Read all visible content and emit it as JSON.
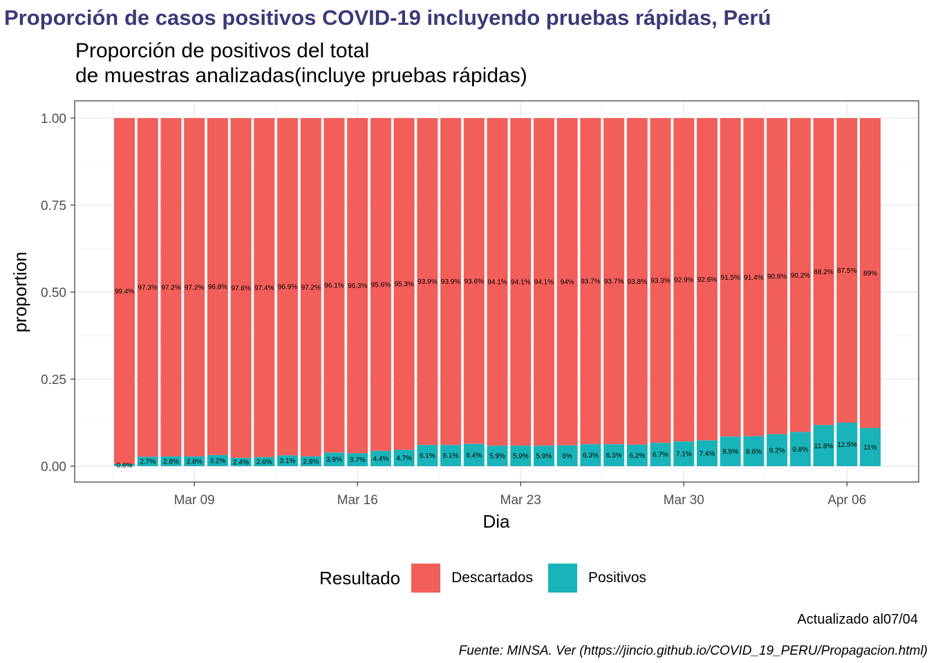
{
  "title": "Proporción de casos positivos COVID-19 incluyendo pruebas rápidas, Perú",
  "subtitle_line1": "Proporción de positivos del total",
  "subtitle_line2": "de muestras analizadas(incluye pruebas rápidas)",
  "legend": {
    "title": "Resultado",
    "items": [
      {
        "label": "Descartados",
        "color": "#F25E5A"
      },
      {
        "label": "Positivos",
        "color": "#19B4B9"
      }
    ]
  },
  "caption_updated": "Actualizado al07/04",
  "caption_source": "Fuente: MINSA. Ver (https://jincio.github.io/COVID_19_PERU/Propagacion.html)",
  "chart_data": {
    "type": "bar",
    "stacked": true,
    "xlabel": "Dia",
    "ylabel": "proportion",
    "ylim": [
      0,
      1
    ],
    "yticks": [
      "0.00",
      "0.25",
      "0.50",
      "0.75",
      "1.00"
    ],
    "xticks": [
      "Mar 09",
      "Mar 16",
      "Mar 23",
      "Mar 30",
      "Apr 06"
    ],
    "grid": true,
    "legend_position": "bottom",
    "categories": [
      "2020-03-06",
      "2020-03-07",
      "2020-03-08",
      "2020-03-09",
      "2020-03-10",
      "2020-03-11",
      "2020-03-12",
      "2020-03-13",
      "2020-03-14",
      "2020-03-15",
      "2020-03-16",
      "2020-03-17",
      "2020-03-18",
      "2020-03-19",
      "2020-03-20",
      "2020-03-21",
      "2020-03-22",
      "2020-03-23",
      "2020-03-24",
      "2020-03-25",
      "2020-03-26",
      "2020-03-27",
      "2020-03-28",
      "2020-03-29",
      "2020-03-30",
      "2020-03-31",
      "2020-04-01",
      "2020-04-02",
      "2020-04-03",
      "2020-04-04",
      "2020-04-05",
      "2020-04-06",
      "2020-04-07"
    ],
    "series": [
      {
        "name": "Positivos",
        "color": "#19B4B9",
        "values": [
          0.006,
          0.027,
          0.028,
          0.028,
          0.032,
          0.024,
          0.026,
          0.031,
          0.028,
          0.039,
          0.037,
          0.044,
          0.047,
          0.061,
          0.061,
          0.064,
          0.059,
          0.059,
          0.059,
          0.06,
          0.063,
          0.063,
          0.062,
          0.067,
          0.071,
          0.074,
          0.085,
          0.086,
          0.092,
          0.098,
          0.118,
          0.125,
          0.11
        ],
        "labels": [
          "0.6%",
          "2.7%",
          "2.8%",
          "2.8%",
          "3.2%",
          "2.4%",
          "2.6%",
          "3.1%",
          "2.8%",
          "3.9%",
          "3.7%",
          "4.4%",
          "4.7%",
          "6.1%",
          "6.1%",
          "6.4%",
          "5.9%",
          "5.9%",
          "5.9%",
          "6%",
          "6.3%",
          "6.3%",
          "6.2%",
          "6.7%",
          "7.1%",
          "7.4%",
          "8.5%",
          "8.6%",
          "9.2%",
          "9.8%",
          "11.8%",
          "12.5%",
          "11%"
        ]
      },
      {
        "name": "Descartados",
        "color": "#F25E5A",
        "values": [
          0.994,
          0.973,
          0.972,
          0.972,
          0.968,
          0.976,
          0.974,
          0.969,
          0.972,
          0.961,
          0.963,
          0.956,
          0.953,
          0.939,
          0.939,
          0.936,
          0.941,
          0.941,
          0.941,
          0.94,
          0.937,
          0.937,
          0.938,
          0.933,
          0.929,
          0.926,
          0.915,
          0.914,
          0.908,
          0.902,
          0.882,
          0.875,
          0.89
        ],
        "labels": [
          "99.4%",
          "97.3%",
          "97.2%",
          "97.2%",
          "96.8%",
          "97.6%",
          "97.4%",
          "96.9%",
          "97.2%",
          "96.1%",
          "96.3%",
          "95.6%",
          "95.3%",
          "93.9%",
          "93.9%",
          "93.6%",
          "94.1%",
          "94.1%",
          "94.1%",
          "94%",
          "93.7%",
          "93.7%",
          "93.8%",
          "93.3%",
          "92.9%",
          "92.6%",
          "91.5%",
          "91.4%",
          "90.8%",
          "90.2%",
          "88.2%",
          "87.5%",
          "89%"
        ]
      }
    ]
  }
}
